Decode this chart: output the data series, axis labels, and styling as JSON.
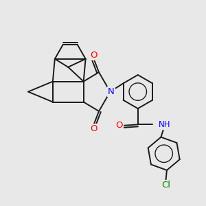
{
  "bg_color": "#e8e8e8",
  "bond_color": "#1a1a1a",
  "bond_width": 1.4,
  "N_color": "#0000ff",
  "O_color": "#ff0000",
  "Cl_color": "#008800",
  "font_size": 8.5,
  "fig_width": 3.0,
  "fig_height": 3.0,
  "dpi": 100,
  "xlim": [
    0,
    10
  ],
  "ylim": [
    0,
    10
  ]
}
